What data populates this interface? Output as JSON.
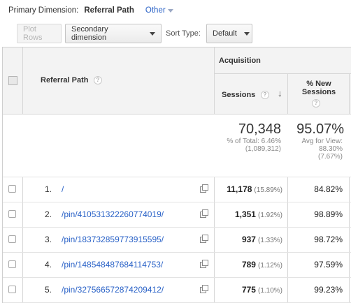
{
  "primary_dimension": {
    "label": "Primary Dimension:",
    "current": "Referral Path",
    "other": "Other"
  },
  "toolbar": {
    "plot_rows": "Plot Rows",
    "secondary_dimension": "Secondary dimension",
    "sort_type_label": "Sort Type:",
    "sort_type_value": "Default"
  },
  "table": {
    "group_header": "Acquisition",
    "columns": {
      "referral_path": "Referral Path",
      "sessions": "Sessions",
      "new_sessions_line1": "% New",
      "new_sessions_line2": "Sessions"
    },
    "help_glyph": "?",
    "sort_arrow": "↓",
    "totals": {
      "sessions_value": "70,348",
      "sessions_sub1": "% of Total: 6.46%",
      "sessions_sub2": "(1,089,312)",
      "new_value": "95.07%",
      "new_sub1": "Avg for View:",
      "new_sub2": "88.30%",
      "new_sub3": "(7.67%)"
    },
    "rows": [
      {
        "index": "1.",
        "path": "/",
        "sessions": "11,178",
        "sessions_pct": "(15.89%)",
        "new_sessions": "84.82%"
      },
      {
        "index": "2.",
        "path": "/pin/410531322260774019/",
        "sessions": "1,351",
        "sessions_pct": "(1.92%)",
        "new_sessions": "98.89%"
      },
      {
        "index": "3.",
        "path": "/pin/183732859773915595/",
        "sessions": "937",
        "sessions_pct": "(1.33%)",
        "new_sessions": "98.72%"
      },
      {
        "index": "4.",
        "path": "/pin/148548487684114753/",
        "sessions": "789",
        "sessions_pct": "(1.12%)",
        "new_sessions": "97.59%"
      },
      {
        "index": "5.",
        "path": "/pin/327566572874209412/",
        "sessions": "775",
        "sessions_pct": "(1.10%)",
        "new_sessions": "99.23%"
      }
    ]
  }
}
